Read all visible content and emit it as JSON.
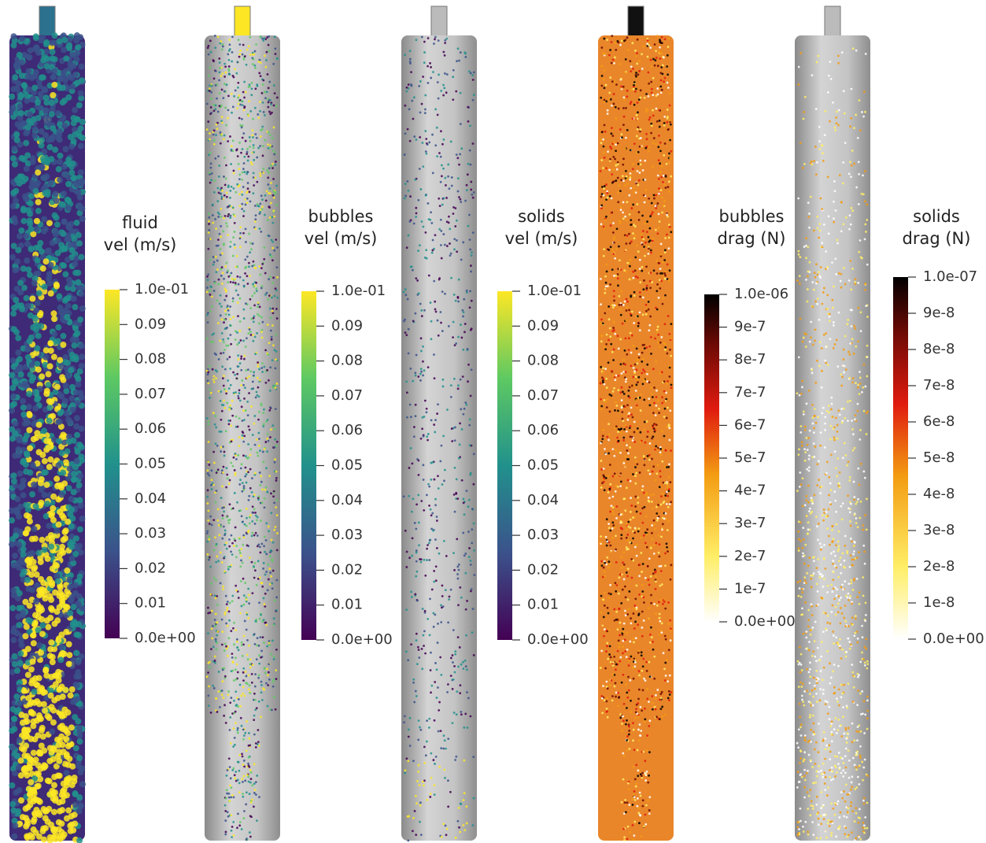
{
  "panels": [
    {
      "title": [
        "fluid",
        "vel (m/s)"
      ],
      "colorbar_labels": [
        "1.0e-01",
        "0.09",
        "0.08",
        "0.07",
        "0.06",
        "0.05",
        "0.04",
        "0.03",
        "0.02",
        "0.01",
        "0.0e+00"
      ]
    },
    {
      "title": [
        "bubbles",
        "vel (m/s)"
      ],
      "colorbar_labels": [
        "1.0e-01",
        "0.09",
        "0.08",
        "0.07",
        "0.06",
        "0.05",
        "0.04",
        "0.03",
        "0.02",
        "0.01",
        "0.0e+00"
      ]
    },
    {
      "title": [
        "solids",
        "vel (m/s)"
      ],
      "colorbar_labels": [
        "1.0e-01",
        "0.09",
        "0.08",
        "0.07",
        "0.06",
        "0.05",
        "0.04",
        "0.03",
        "0.02",
        "0.01",
        "0.0e+00"
      ]
    },
    {
      "title": [
        "bubbles",
        "drag (N)"
      ],
      "colorbar_labels": [
        "1.0e-06",
        "9e-7",
        "8e-7",
        "7e-7",
        "6e-7",
        "5e-7",
        "4e-7",
        "3e-7",
        "2e-7",
        "1e-7",
        "0.0e+00"
      ]
    },
    {
      "title": [
        "solids",
        "drag (N)"
      ],
      "colorbar_labels": [
        "1.0e-07",
        "9e-8",
        "8e-8",
        "7e-8",
        "6e-8",
        "5e-8",
        "4e-8",
        "3e-8",
        "2e-8",
        "1e-8",
        "0.0e+00"
      ]
    }
  ]
}
